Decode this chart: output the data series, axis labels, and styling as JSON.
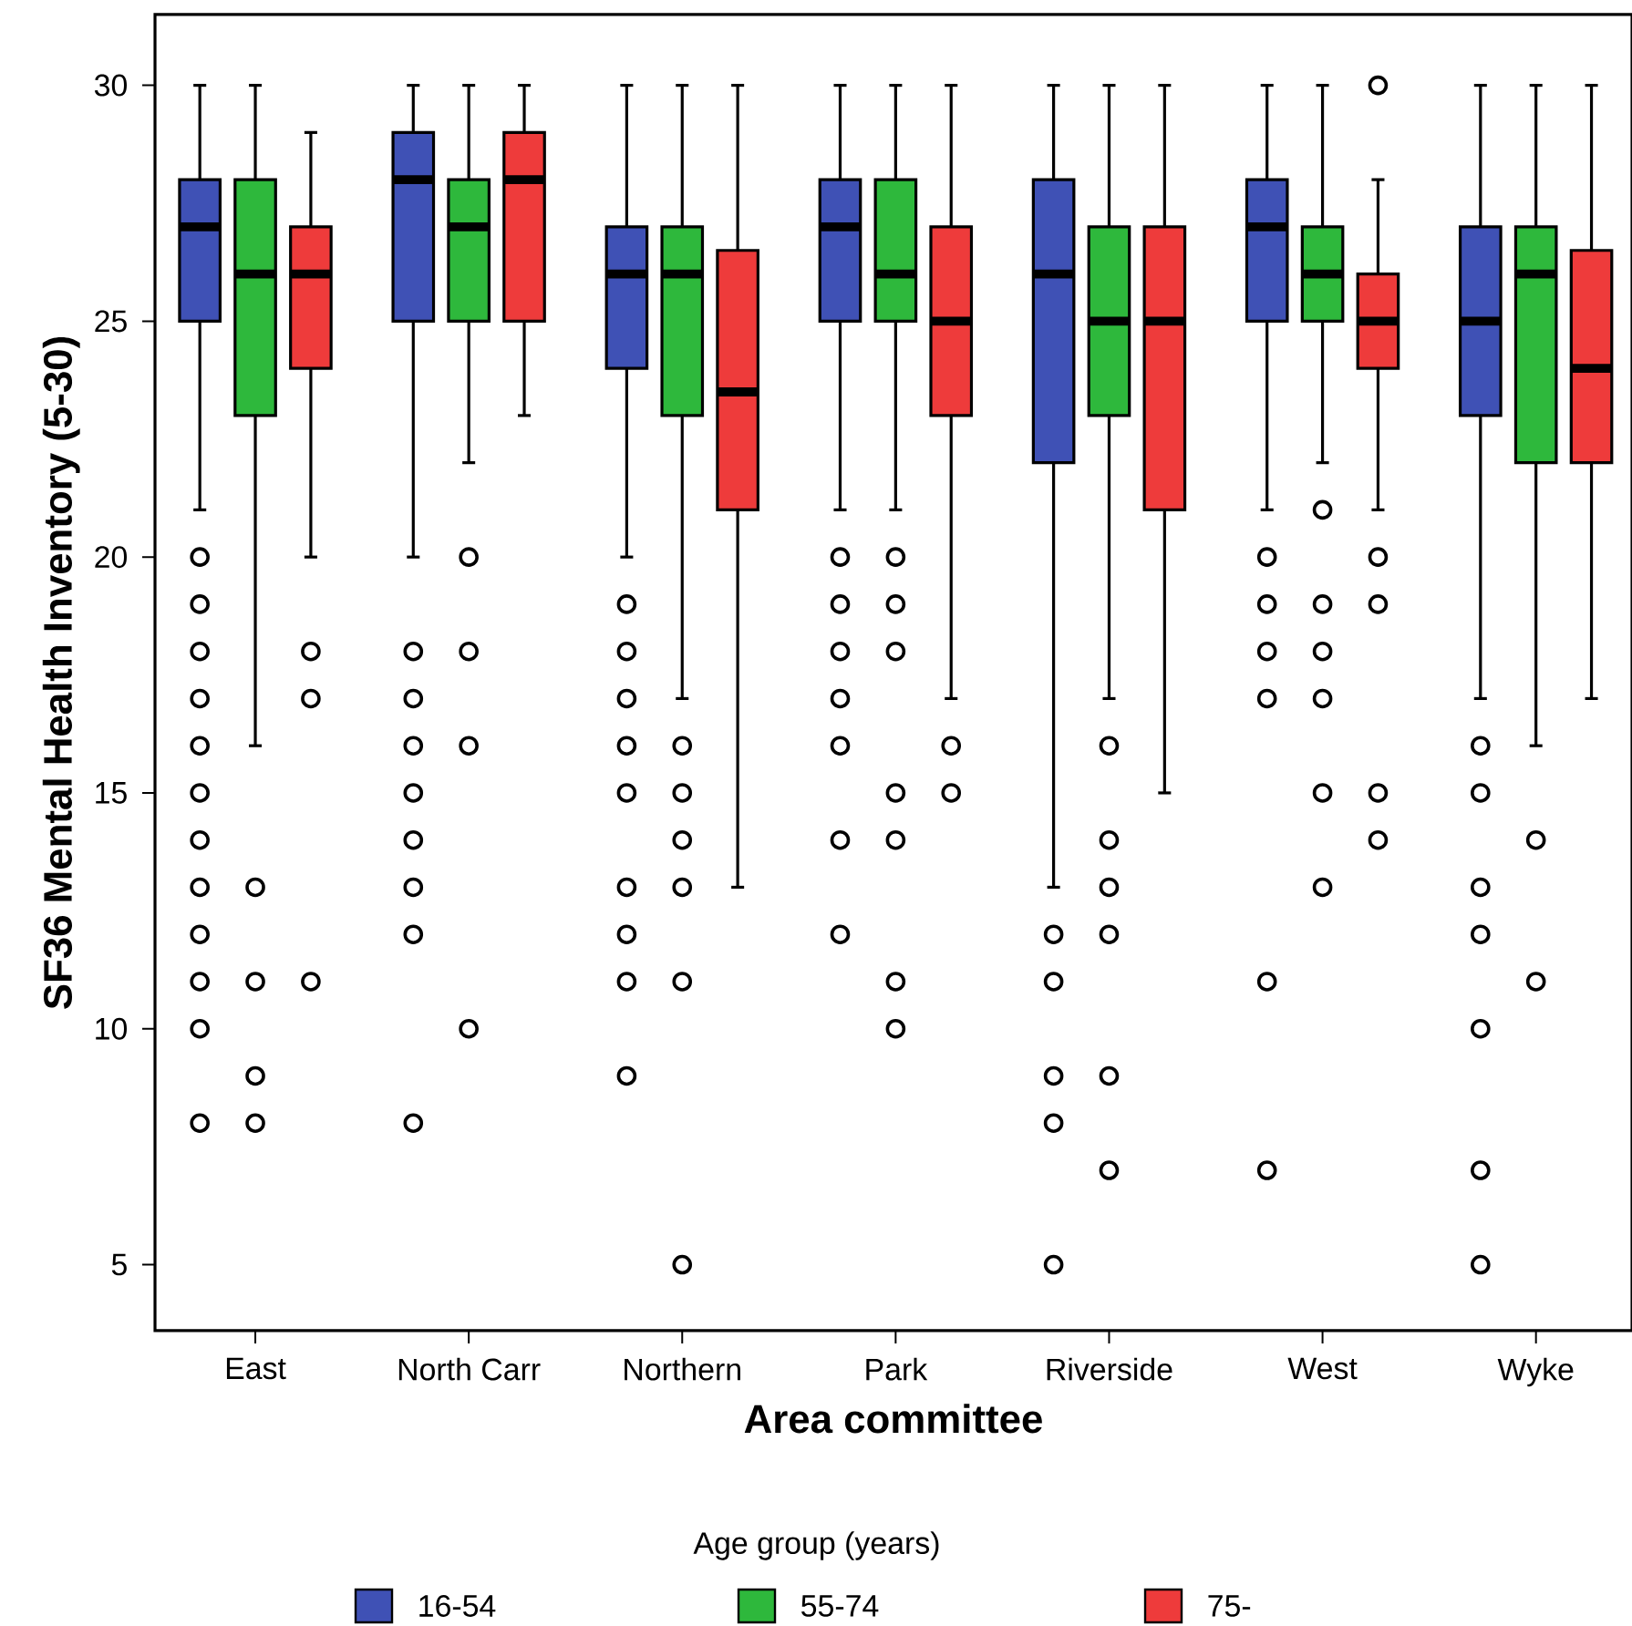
{
  "chart_data": {
    "type": "box",
    "xlabel": "Area committee",
    "ylabel": "SF36 Mental Health Inventory (5-30)",
    "legend_title": "Age group (years)",
    "legend": "bottom",
    "categories": [
      "East",
      "North Carr",
      "Northern",
      "Park",
      "Riverside",
      "West",
      "Wyke"
    ],
    "ylim": [
      3.6,
      31.5
    ],
    "yticks": [
      5,
      10,
      15,
      20,
      25,
      30
    ],
    "series": [
      {
        "name": "16-54",
        "color": "#3f51b5",
        "boxes": [
          {
            "low": 21,
            "q1": 25,
            "median": 27,
            "q3": 28,
            "high": 30,
            "outliers": [
              20,
              19,
              18,
              17,
              16,
              15,
              14,
              13,
              12,
              11,
              10,
              8
            ]
          },
          {
            "low": 20,
            "q1": 25,
            "median": 28,
            "q3": 29,
            "high": 30,
            "outliers": [
              18,
              17,
              16,
              15,
              14,
              13,
              12,
              8
            ]
          },
          {
            "low": 20,
            "q1": 24,
            "median": 26,
            "q3": 27,
            "high": 30,
            "outliers": [
              19,
              18,
              17,
              16,
              15,
              13,
              12,
              11,
              9
            ]
          },
          {
            "low": 21,
            "q1": 25,
            "median": 27,
            "q3": 28,
            "high": 30,
            "outliers": [
              20,
              19,
              18,
              17,
              16,
              14,
              12
            ]
          },
          {
            "low": 13,
            "q1": 22,
            "median": 26,
            "q3": 28,
            "high": 30,
            "outliers": [
              12,
              11,
              9,
              8,
              5
            ]
          },
          {
            "low": 21,
            "q1": 25,
            "median": 27,
            "q3": 28,
            "high": 30,
            "outliers": [
              20,
              19,
              18,
              17,
              11,
              7
            ]
          },
          {
            "low": 17,
            "q1": 23,
            "median": 25,
            "q3": 27,
            "high": 30,
            "outliers": [
              16,
              15,
              13,
              12,
              10,
              7,
              5
            ]
          }
        ]
      },
      {
        "name": "55-74",
        "color": "#2eb83c",
        "boxes": [
          {
            "low": 16,
            "q1": 23,
            "median": 26,
            "q3": 28,
            "high": 30,
            "outliers": [
              13,
              11,
              9,
              8
            ]
          },
          {
            "low": 22,
            "q1": 25,
            "median": 27,
            "q3": 28,
            "high": 30,
            "outliers": [
              20,
              18,
              16,
              10
            ]
          },
          {
            "low": 17,
            "q1": 23,
            "median": 26,
            "q3": 27,
            "high": 30,
            "outliers": [
              16,
              15,
              14,
              13,
              11,
              5
            ]
          },
          {
            "low": 21,
            "q1": 25,
            "median": 26,
            "q3": 28,
            "high": 30,
            "outliers": [
              20,
              19,
              18,
              15,
              14,
              11,
              10
            ]
          },
          {
            "low": 17,
            "q1": 23,
            "median": 25,
            "q3": 27,
            "high": 30,
            "outliers": [
              16,
              14,
              13,
              12,
              9,
              7
            ]
          },
          {
            "low": 22,
            "q1": 25,
            "median": 26,
            "q3": 27,
            "high": 30,
            "outliers": [
              21,
              19,
              18,
              17,
              15,
              13
            ]
          },
          {
            "low": 16,
            "q1": 22,
            "median": 26,
            "q3": 27,
            "high": 30,
            "outliers": [
              14,
              11
            ]
          }
        ]
      },
      {
        "name": "75-",
        "color": "#ee3b3b",
        "boxes": [
          {
            "low": 20,
            "q1": 24,
            "median": 26,
            "q3": 27,
            "high": 29,
            "outliers": [
              18,
              17,
              11
            ]
          },
          {
            "low": 23,
            "q1": 25,
            "median": 28,
            "q3": 29,
            "high": 30
          },
          {
            "low": 13,
            "q1": 21,
            "median": 23.5,
            "q3": 26.5,
            "high": 30
          },
          {
            "low": 17,
            "q1": 23,
            "median": 25,
            "q3": 27,
            "high": 30,
            "outliers": [
              16,
              15
            ]
          },
          {
            "low": 15,
            "q1": 21,
            "median": 25,
            "q3": 27,
            "high": 30
          },
          {
            "low": 21,
            "q1": 24,
            "median": 25,
            "q3": 26,
            "high": 28,
            "outliers": [
              30,
              20,
              19,
              15,
              14
            ]
          },
          {
            "low": 17,
            "q1": 22,
            "median": 24,
            "q3": 26.5,
            "high": 30
          }
        ]
      }
    ]
  }
}
